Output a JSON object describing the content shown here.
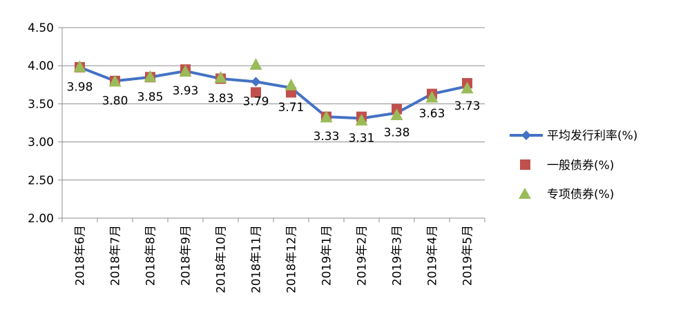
{
  "chart_data": {
    "type": "line",
    "categories": [
      "2018年6月",
      "2018年7月",
      "2018年8月",
      "2018年9月",
      "2018年10月",
      "2018年11月",
      "2018年12月",
      "2019年1月",
      "2019年2月",
      "2019年3月",
      "2019年4月",
      "2019年5月"
    ],
    "ylim": [
      2.0,
      4.5
    ],
    "yticks": [
      "2.00",
      "2.50",
      "3.00",
      "3.50",
      "4.00",
      "4.50"
    ],
    "ytick_values": [
      2.0,
      2.5,
      3.0,
      3.5,
      4.0,
      4.5
    ],
    "grid": true,
    "legend_position": "right",
    "series": [
      {
        "name": "平均发行利率(%)",
        "kind": "line",
        "color": "#4472C4",
        "marker": "diamond",
        "values": [
          3.98,
          3.8,
          3.85,
          3.93,
          3.83,
          3.79,
          3.71,
          3.33,
          3.31,
          3.38,
          3.63,
          3.73
        ],
        "labels": [
          "3.98",
          "3.80",
          "3.85",
          "3.93",
          "3.83",
          "3.79",
          "3.71",
          "3.33",
          "3.31",
          "3.38",
          "3.63",
          "3.73"
        ]
      },
      {
        "name": "一般债券(%)",
        "kind": "marker",
        "color": "#C0504D",
        "marker": "square",
        "values": [
          3.98,
          3.8,
          3.85,
          3.95,
          3.83,
          3.65,
          3.65,
          3.33,
          3.33,
          3.43,
          3.63,
          3.77
        ]
      },
      {
        "name": "专项债券(%)",
        "kind": "marker",
        "color": "#9BBB59",
        "marker": "triangle",
        "values": [
          3.98,
          3.79,
          3.85,
          3.92,
          3.84,
          4.01,
          3.74,
          3.32,
          3.28,
          3.35,
          3.58,
          3.7
        ]
      }
    ]
  }
}
